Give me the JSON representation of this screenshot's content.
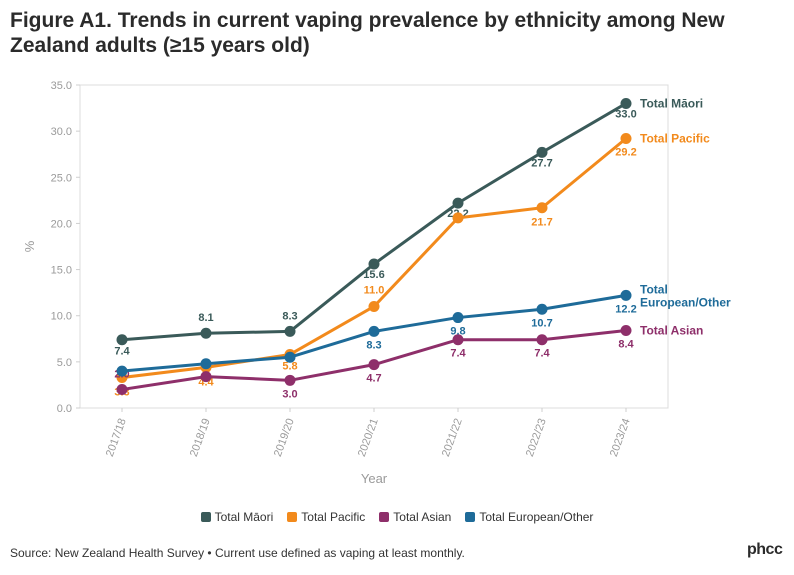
{
  "header": {
    "title": "Figure A1. Trends in current vaping prevalence by ethnicity among New Zealand adults (≥15 years old)"
  },
  "footer": {
    "source": "Source: New Zealand Health Survey • Current use defined as vaping at least monthly.",
    "logo_text": "phcc"
  },
  "chart_data": {
    "type": "line",
    "title": "Figure A1. Trends in current vaping prevalence by ethnicity among New Zealand adults (≥15 years old)",
    "xlabel": "Year",
    "ylabel": "%",
    "ylim": [
      0,
      35
    ],
    "yticks": [
      "0.0",
      "5.0",
      "10.0",
      "15.0",
      "20.0",
      "25.0",
      "30.0",
      "35.0"
    ],
    "categories": [
      "2017/18",
      "2018/19",
      "2019/20",
      "2020/21",
      "2021/22",
      "2022/23",
      "2023/24"
    ],
    "legend_position": "bottom",
    "series": [
      {
        "name": "Total Māori",
        "end_label": [
          "Total Māori"
        ],
        "color": "#3a5a59",
        "values": [
          7.4,
          8.1,
          8.3,
          15.6,
          22.2,
          27.7,
          33.0
        ],
        "labels": [
          "7.4",
          "8.1",
          "8.3",
          "15.6",
          "22.2",
          "27.7",
          "33.0"
        ]
      },
      {
        "name": "Total Pacific",
        "end_label": [
          "Total Pacific"
        ],
        "color": "#f28a1c",
        "values": [
          3.3,
          4.4,
          5.8,
          11.0,
          20.6,
          21.7,
          29.2
        ],
        "labels": [
          "3.3",
          "4.4",
          "5.8",
          "11.0",
          "",
          "21.7",
          "29.2"
        ]
      },
      {
        "name": "Total Asian",
        "end_label": [
          "Total Asian"
        ],
        "color": "#8e2f6a",
        "values": [
          2.0,
          3.4,
          3.0,
          4.7,
          7.4,
          7.4,
          8.4
        ],
        "labels": [
          "2.0",
          "",
          "3.0",
          "4.7",
          "7.4",
          "7.4",
          "8.4"
        ]
      },
      {
        "name": "Total European/Other",
        "end_label": [
          "Total",
          "European/Other"
        ],
        "color": "#1e6b99",
        "values": [
          4.0,
          4.8,
          5.5,
          8.3,
          9.8,
          10.7,
          12.2
        ],
        "labels": [
          "",
          "",
          "",
          "8.3",
          "9.8",
          "10.7",
          "12.2"
        ]
      }
    ]
  }
}
